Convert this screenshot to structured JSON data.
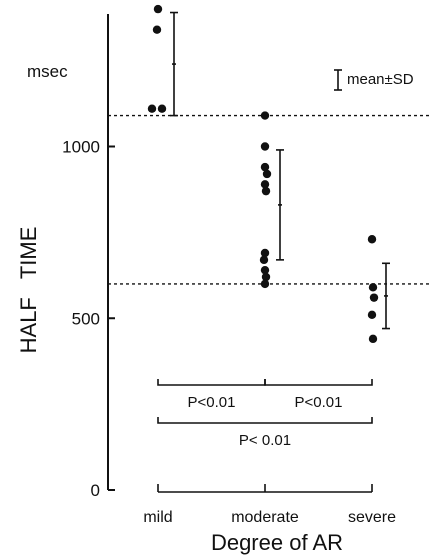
{
  "chart_data": {
    "type": "scatter",
    "xlabel": "Degree of AR",
    "ylabel": "HALF   TIME",
    "yunit": "msec",
    "categories": [
      "mild",
      "moderate",
      "severe"
    ],
    "yticks": [
      0,
      500,
      1000
    ],
    "ylim": [
      0,
      1470
    ],
    "points": {
      "mild": [
        1400,
        1340,
        1110,
        1110
      ],
      "moderate": [
        1090,
        1000,
        940,
        920,
        890,
        870,
        690,
        670,
        640,
        620,
        600
      ],
      "severe": [
        730,
        590,
        560,
        510,
        440
      ]
    },
    "mean_sd": {
      "mild": {
        "mean": 1240,
        "sd": 150
      },
      "moderate": {
        "mean": 830,
        "sd": 160
      },
      "severe": {
        "mean": 565,
        "sd": 95
      }
    },
    "reference_lines": [
      1090,
      600
    ],
    "legend": "mean±SD",
    "comparisons": [
      {
        "from": "mild",
        "to": "moderate",
        "label": "P<0.01"
      },
      {
        "from": "moderate",
        "to": "severe",
        "label": "P<0.01"
      },
      {
        "from": "mild",
        "to": "severe",
        "label": "P< 0.01"
      }
    ]
  }
}
